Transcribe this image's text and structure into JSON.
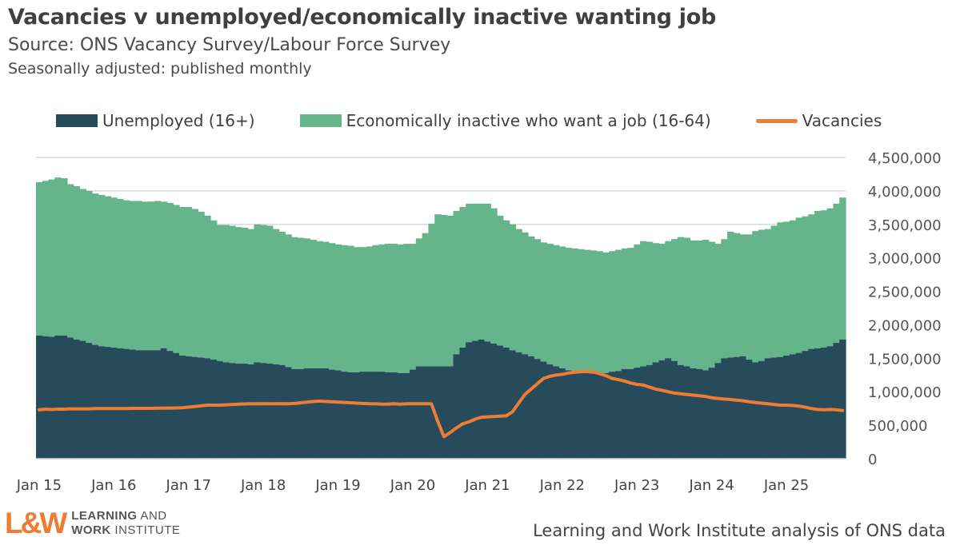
{
  "title": "Vacancies v unemployed/economically inactive wanting job",
  "subtitle": "Source: ONS Vacancy Survey/Labour Force Survey",
  "subtitle2": "Seasonally adjusted: published monthly",
  "source_note": "Learning and Work Institute analysis of ONS data",
  "logo": {
    "mark": "L&W",
    "line1": "LEARNING AND",
    "line2": "WORK INSTITUTE"
  },
  "colors": {
    "unemployed": "#264b5a",
    "inactive": "#65b48b",
    "vacancies": "#ee7d31",
    "grid": "#d9d9d9"
  },
  "chart_data": {
    "type": "bar",
    "stacked": true,
    "frequency": "monthly",
    "x_start": "Jan 2015",
    "x_tick_labels": [
      "Jan 15",
      "Jan 16",
      "Jan 17",
      "Jan 18",
      "Jan 19",
      "Jan 20",
      "Jan 21",
      "Jan 22",
      "Jan 23",
      "Jan 24",
      "Jan 25"
    ],
    "y_tick_labels": [
      "0",
      "500,000",
      "1,000,000",
      "1,500,000",
      "2,000,000",
      "2,500,000",
      "3,000,000",
      "3,500,000",
      "4,000,000",
      "4,500,000"
    ],
    "ylim": [
      0,
      4500000
    ],
    "y_axis_position": "right",
    "grid": true,
    "legend_position": "top",
    "legend": [
      "Unemployed (16+)",
      "Economically inactive who want a job (16-64)",
      "Vacancies"
    ],
    "series": [
      {
        "name": "Unemployed (16+)",
        "type": "bar",
        "values": [
          1840000,
          1830000,
          1820000,
          1840000,
          1840000,
          1810000,
          1780000,
          1760000,
          1730000,
          1700000,
          1680000,
          1670000,
          1660000,
          1650000,
          1640000,
          1630000,
          1620000,
          1620000,
          1620000,
          1620000,
          1650000,
          1610000,
          1580000,
          1540000,
          1530000,
          1520000,
          1510000,
          1500000,
          1480000,
          1460000,
          1440000,
          1430000,
          1420000,
          1420000,
          1410000,
          1440000,
          1430000,
          1420000,
          1410000,
          1400000,
          1370000,
          1340000,
          1340000,
          1350000,
          1350000,
          1350000,
          1350000,
          1330000,
          1320000,
          1300000,
          1290000,
          1290000,
          1300000,
          1300000,
          1300000,
          1300000,
          1290000,
          1290000,
          1280000,
          1280000,
          1330000,
          1380000,
          1380000,
          1380000,
          1380000,
          1380000,
          1380000,
          1560000,
          1660000,
          1740000,
          1760000,
          1780000,
          1750000,
          1720000,
          1690000,
          1660000,
          1620000,
          1590000,
          1560000,
          1530000,
          1490000,
          1450000,
          1410000,
          1380000,
          1350000,
          1320000,
          1300000,
          1290000,
          1280000,
          1270000,
          1270000,
          1280000,
          1300000,
          1310000,
          1340000,
          1340000,
          1360000,
          1380000,
          1400000,
          1440000,
          1470000,
          1500000,
          1460000,
          1400000,
          1380000,
          1350000,
          1340000,
          1320000,
          1360000,
          1430000,
          1500000,
          1510000,
          1520000,
          1530000,
          1480000,
          1440000,
          1460000,
          1500000,
          1510000,
          1520000,
          1540000,
          1560000,
          1580000,
          1610000,
          1640000,
          1650000,
          1660000,
          1680000,
          1730000,
          1780000
        ]
      },
      {
        "name": "Economically inactive who want a job (16-64)",
        "type": "bar",
        "stack_total_values": [
          4130000,
          4150000,
          4170000,
          4200000,
          4190000,
          4100000,
          4070000,
          4030000,
          4000000,
          3960000,
          3940000,
          3920000,
          3900000,
          3880000,
          3860000,
          3850000,
          3850000,
          3840000,
          3840000,
          3850000,
          3840000,
          3820000,
          3790000,
          3760000,
          3760000,
          3730000,
          3690000,
          3630000,
          3560000,
          3490000,
          3490000,
          3480000,
          3460000,
          3450000,
          3430000,
          3500000,
          3490000,
          3480000,
          3430000,
          3390000,
          3350000,
          3310000,
          3300000,
          3290000,
          3270000,
          3250000,
          3240000,
          3220000,
          3200000,
          3190000,
          3180000,
          3160000,
          3160000,
          3170000,
          3190000,
          3200000,
          3210000,
          3210000,
          3200000,
          3210000,
          3210000,
          3290000,
          3370000,
          3510000,
          3650000,
          3640000,
          3630000,
          3700000,
          3760000,
          3810000,
          3810000,
          3810000,
          3810000,
          3740000,
          3630000,
          3560000,
          3500000,
          3430000,
          3380000,
          3320000,
          3280000,
          3230000,
          3210000,
          3190000,
          3170000,
          3150000,
          3140000,
          3130000,
          3120000,
          3110000,
          3100000,
          3080000,
          3100000,
          3120000,
          3140000,
          3150000,
          3200000,
          3250000,
          3240000,
          3220000,
          3210000,
          3250000,
          3280000,
          3310000,
          3300000,
          3260000,
          3260000,
          3270000,
          3240000,
          3210000,
          3280000,
          3390000,
          3370000,
          3350000,
          3350000,
          3400000,
          3420000,
          3430000,
          3480000,
          3530000,
          3540000,
          3560000,
          3600000,
          3620000,
          3650000,
          3700000,
          3710000,
          3740000,
          3810000,
          3900000
        ]
      },
      {
        "name": "Vacancies",
        "type": "line",
        "values": [
          730000,
          740000,
          735000,
          740000,
          740000,
          745000,
          745000,
          745000,
          745000,
          748000,
          750000,
          750000,
          750000,
          750000,
          750000,
          752000,
          752000,
          752000,
          752000,
          755000,
          755000,
          757000,
          758000,
          760000,
          770000,
          780000,
          790000,
          800000,
          800000,
          800000,
          805000,
          810000,
          815000,
          818000,
          820000,
          820000,
          820000,
          820000,
          820000,
          822000,
          820000,
          825000,
          835000,
          845000,
          855000,
          860000,
          855000,
          850000,
          845000,
          840000,
          835000,
          830000,
          825000,
          820000,
          820000,
          815000,
          815000,
          820000,
          815000,
          820000,
          820000,
          820000,
          820000,
          820000,
          560000,
          330000,
          390000,
          460000,
          520000,
          550000,
          590000,
          620000,
          625000,
          630000,
          635000,
          640000,
          700000,
          830000,
          960000,
          1040000,
          1120000,
          1200000,
          1230000,
          1250000,
          1260000,
          1280000,
          1290000,
          1300000,
          1300000,
          1295000,
          1270000,
          1240000,
          1200000,
          1180000,
          1160000,
          1130000,
          1110000,
          1100000,
          1070000,
          1040000,
          1020000,
          1000000,
          980000,
          970000,
          960000,
          950000,
          940000,
          930000,
          910000,
          900000,
          890000,
          885000,
          875000,
          865000,
          850000,
          840000,
          830000,
          820000,
          810000,
          800000,
          800000,
          795000,
          785000,
          770000,
          750000,
          735000,
          730000,
          735000,
          730000,
          720000
        ]
      }
    ]
  }
}
